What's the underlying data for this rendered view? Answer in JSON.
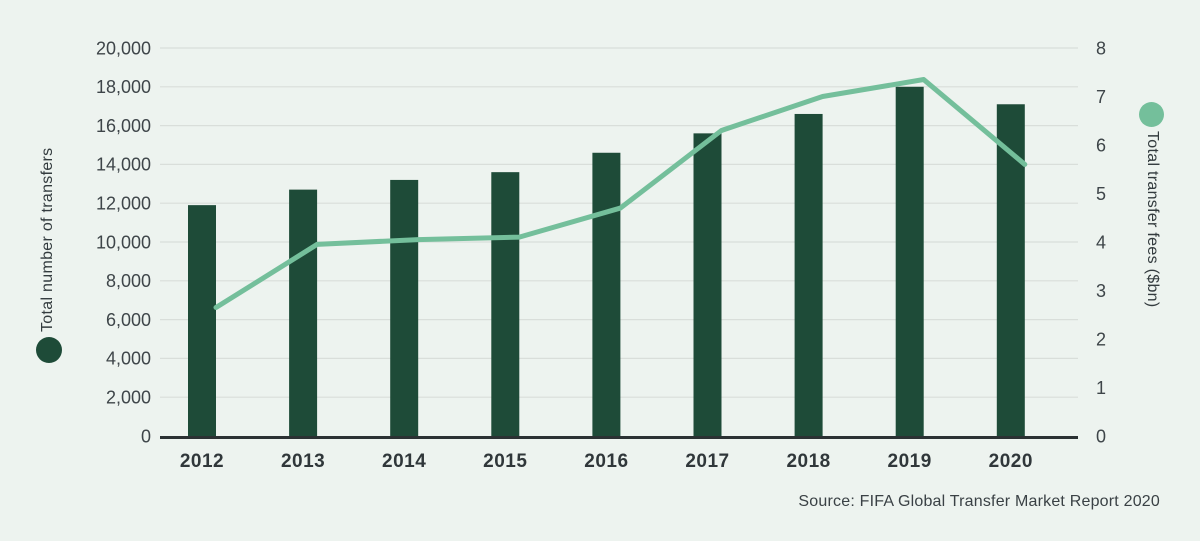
{
  "page": {
    "background_color": "#EDF3EF"
  },
  "chart_data": {
    "type": "combo",
    "title": "",
    "categories": [
      "2012",
      "2013",
      "2014",
      "2015",
      "2016",
      "2017",
      "2018",
      "2019",
      "2020"
    ],
    "series": [
      {
        "name": "Total number of transfers",
        "type": "bar",
        "axis": "left",
        "color": "#1E4B38",
        "values": [
          11900,
          12700,
          13200,
          13600,
          14600,
          15600,
          16600,
          18000,
          17100
        ]
      },
      {
        "name": "Total transfer fees ($bn)",
        "type": "line",
        "axis": "right",
        "color": "#74BF9B",
        "values": [
          2.65,
          3.95,
          4.05,
          4.1,
          4.7,
          6.3,
          7.0,
          7.35,
          5.6
        ]
      }
    ],
    "left_axis": {
      "label": "Total number of transfers",
      "min": 0,
      "max": 20000,
      "step": 2000,
      "tick_labels": [
        "0",
        "2,000",
        "4,000",
        "6,000",
        "8,000",
        "10,000",
        "12,000",
        "14,000",
        "16,000",
        "18,000",
        "20,000"
      ]
    },
    "right_axis": {
      "label": "Total transfer fees ($bn)",
      "min": 0,
      "max": 8,
      "step": 1,
      "tick_labels": [
        "0",
        "1",
        "2",
        "3",
        "4",
        "5",
        "6",
        "7",
        "8"
      ]
    },
    "grid": true,
    "legend": [
      {
        "label": "Total number of transfers",
        "marker": "circle",
        "color": "#1E4B38",
        "position": "left"
      },
      {
        "label": "Total transfer fees ($bn)",
        "marker": "circle",
        "color": "#74BF9B",
        "position": "right"
      }
    ],
    "source": "Source: FIFA Global Transfer Market Report 2020"
  },
  "colors": {
    "background": "#EDF3EF",
    "grid_line": "#D9DEDA",
    "axis_line": "#2B3133",
    "tick_text": "#3E4549",
    "category_text": "#30373A",
    "bar": "#1E4B38",
    "line": "#74BF9B"
  }
}
